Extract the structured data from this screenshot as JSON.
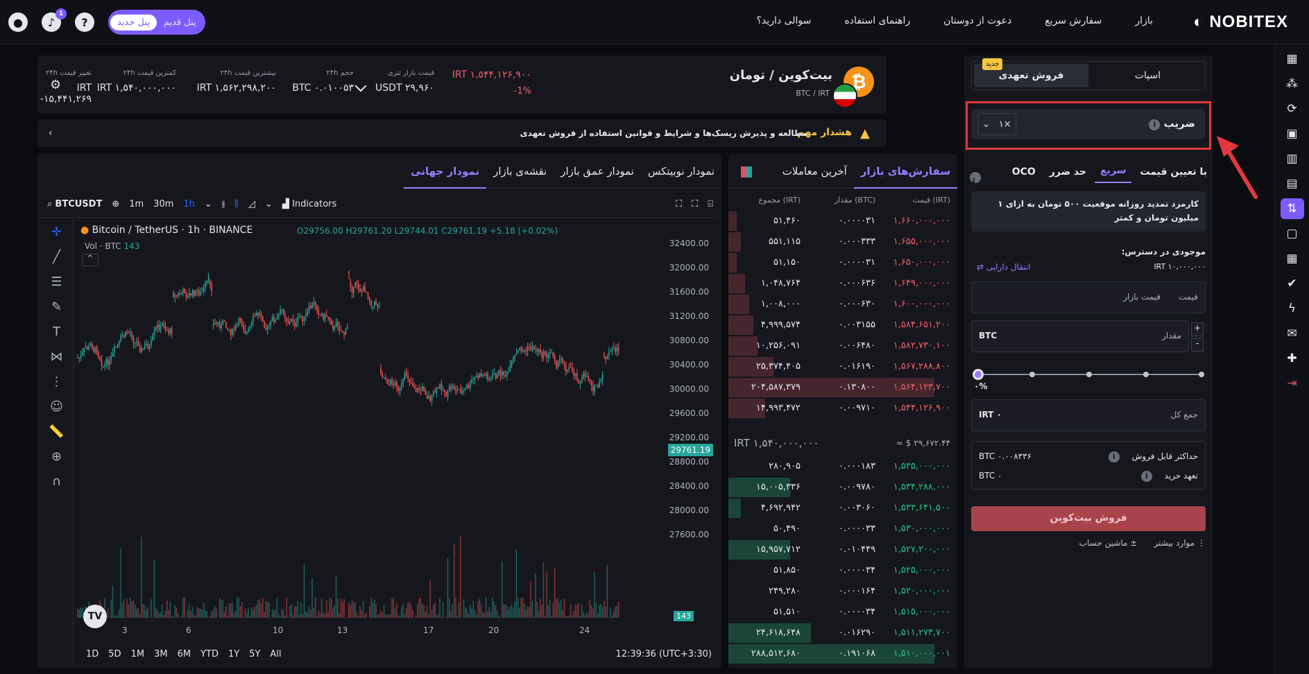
{
  "topbar": {
    "logo": "NOBITEX",
    "nav": [
      "بازار",
      "سفارش سریع",
      "دعوت از دوستان",
      "راهنمای استفاده",
      "سوالی دارید؟"
    ],
    "panel_new": "پنل جدید",
    "panel_old": "پنل قدیم",
    "notif_count": "1",
    "help": "?"
  },
  "market": {
    "title": "بیت‌کوین / تومان",
    "pair": "BTC / IRT",
    "coin_glyph": "₿",
    "stats": [
      {
        "label": "قیمت بازار تتری",
        "value": "USDT ۲۹,۹۶۰"
      },
      {
        "label": "حجم ۲۴h",
        "value": "BTC ۰.۰۱۰۰۵۳"
      },
      {
        "label": "بیشترین قیمت ۲۴h",
        "value": "IRT ۱,۵۶۲,۲۹۸,۲۰۰"
      },
      {
        "label": "کمترین قیمت ۲۴h",
        "value": "IRT ۱,۵۴۰,۰۰۰,۰۰۰"
      },
      {
        "label": "تغییر قیمت ۲۴h",
        "value": "IRT -۱۵,۴۴۱,۲۶۹"
      }
    ],
    "price": "IRT ۱,۵۴۴,۱۲۶,۹۰۰",
    "change": "-1%"
  },
  "warning": {
    "title": "هشدار مهم",
    "text": "مطالعه و پذیرش ریسک‌ها و شرایط و قوانین استفاده از فروش تعهدی"
  },
  "chart_tabs": [
    "نمودار نوبیتکس",
    "نمودار عمق بازار",
    "نقشه‌ی بازار",
    "نمودار جهانی"
  ],
  "tv": {
    "symbol": "BTCUSDT",
    "intervals": [
      "1m",
      "30m",
      "1h"
    ],
    "indicators": "Indicators",
    "legend": "Bitcoin / TetherUS · 1h · BINANCE",
    "ohlc": "O29756.00 H29761.20 L29744.01 C29761.19 +5.18 (+0.02%)",
    "vol_legend": "Vol · BTC",
    "vol_value": "143",
    "price_tag": "29761.19",
    "vol_tag": "143",
    "yticks": [
      "32400.00",
      "32000.00",
      "31600.00",
      "31200.00",
      "30800.00",
      "30400.00",
      "30000.00",
      "29600.00",
      "29200.00",
      "28800.00",
      "28400.00",
      "28000.00",
      "27600.00"
    ],
    "xticks": [
      "3",
      "6",
      "10",
      "13",
      "17",
      "20",
      "24"
    ],
    "ranges": [
      "1D",
      "5D",
      "1M",
      "3M",
      "6M",
      "YTD",
      "1Y",
      "5Y",
      "All"
    ],
    "time": "12:39:36 (UTC+3:30)",
    "logo": "TV"
  },
  "orderbook": {
    "tabs": [
      "سفارش‌های بازار",
      "آخرین معاملات"
    ],
    "headers": [
      "قیمت (IRT)",
      "مقدار (BTC)",
      "مجموع (IRT)"
    ],
    "asks": [
      [
        "۱,۶۶۰,۰۰۰,۰۰۰",
        "۰.۰۰۰۰۳۱",
        "۵۱,۴۶۰",
        4
      ],
      [
        "۱,۶۵۵,۰۰۰,۰۰۰",
        "۰.۰۰۰۳۳۳",
        "۵۵۱,۱۱۵",
        6
      ],
      [
        "۱,۶۵۰,۰۰۰,۰۰۰",
        "۰.۰۰۰۰۳۱",
        "۵۱,۱۵۰",
        4
      ],
      [
        "۱,۶۴۹,۰۰۰,۰۰۰",
        "۰.۰۰۰۶۳۶",
        "۱,۰۴۸,۷۶۴",
        8
      ],
      [
        "۱,۶۰۰,۰۰۰,۰۰۰",
        "۰.۰۰۰۶۳۰",
        "۱,۰۰۸,۰۰۰",
        10
      ],
      [
        "۱,۵۸۴,۶۵۱,۲۰۰",
        "۰.۰۰۳۱۵۵",
        "۴,۹۹۹,۵۷۴",
        12
      ],
      [
        "۱,۵۸۲,۷۳۰,۱۰۰",
        "۰.۰۰۶۴۸۰",
        "۱۰,۲۵۶,۰۹۱",
        14
      ],
      [
        "۱,۵۶۷,۲۸۸,۸۰۰",
        "۰.۰۱۶۱۹۰",
        "۲۵,۳۷۴,۴۰۵",
        22
      ],
      [
        "۱,۵۶۴,۱۲۳,۷۰۰",
        "۰.۱۳۰۸۰۰",
        "۲۰۴,۵۸۷,۳۷۹",
        100
      ],
      [
        "۱,۵۴۴,۱۲۶,۹۰۰",
        "۰.۰۰۹۷۱۰",
        "۱۴,۹۹۳,۴۷۲",
        18
      ]
    ],
    "mid_irt": "IRT ۱,۵۴۰,۰۰۰,۰۰۰",
    "mid_usd": "≈ $ ۲۹,۶۷۲.۴۴",
    "bids": [
      [
        "۱,۵۳۵,۰۰۰,۰۰۰",
        "۰.۰۰۰۱۸۳",
        "۲۸۰,۹۰۵",
        0
      ],
      [
        "۱,۵۳۴,۲۸۸,۰۰۰",
        "۰.۰۰۹۷۸۰",
        "۱۵,۰۰۵,۳۳۶",
        30
      ],
      [
        "۱,۵۳۳,۶۴۱,۵۰۰",
        "۰.۰۰۳۰۶۰",
        "۴,۶۹۲,۹۴۲",
        6
      ],
      [
        "۱,۵۳۰,۰۰۰,۰۰۰",
        "۰.۰۰۰۰۳۳",
        "۵۰,۴۹۰",
        0
      ],
      [
        "۱,۵۲۷,۲۰۰,۰۰۰",
        "۰.۰۱۰۴۴۹",
        "۱۵,۹۵۷,۷۱۲",
        30
      ],
      [
        "۱,۵۲۵,۰۰۰,۰۰۰",
        "۰.۰۰۰۰۳۴",
        "۵۱,۸۵۰",
        0
      ],
      [
        "۱,۵۲۰,۰۰۰,۰۰۰",
        "۰.۰۰۰۱۶۴",
        "۲۴۹,۲۸۰",
        0
      ],
      [
        "۱,۵۱۵,۰۰۰,۰۰۰",
        "۰.۰۰۰۰۳۴",
        "۵۱,۵۱۰",
        0
      ],
      [
        "۱,۵۱۱,۲۷۳,۷۰۰",
        "۰.۰۱۶۲۹۰",
        "۲۴,۶۱۸,۶۴۸",
        40
      ],
      [
        "۱,۵۱۰,۰۰۰,۰۰۱",
        "۰.۱۹۱۰۶۸",
        "۲۸۸,۵۱۲,۶۸۰",
        100
      ]
    ]
  },
  "trade": {
    "tab_spot": "اسپات",
    "tab_margin": "فروش تعهدی",
    "new_badge": "جدید",
    "leverage_label": "ضریب",
    "leverage_value": "۱×",
    "order_tabs": [
      "با تعیین قیمت",
      "سریع",
      "حد ضرر",
      "OCO"
    ],
    "fee_text": "کارمزد تمدید روزانه موقعیت ۵۰۰ تومان به ازای ۱ میلیون تومان و کمتر",
    "available_label": "موجودی در دسترس:",
    "available_value": "IRT ۱۰,۰۰۰,۰۰۰",
    "transfer": "انتقال دارایی",
    "price_label": "قیمت",
    "price_placeholder": "قیمت بازار",
    "amount_label": "مقدار",
    "amount_unit": "BTC",
    "percent": "۰%",
    "total_label": "جمع کل",
    "total_value": "IRT ۰",
    "max_sell_label": "حداکثر قابل فروش",
    "max_sell_value": "BTC ۰.۰۰۸۳۳۶",
    "commit_label": "تعهد خرید",
    "commit_value": "BTC ۰",
    "sell_button": "فروش بیت‌کوین",
    "more": "موارد بیشتر",
    "calculator": "ماشین حساب"
  },
  "colors": {
    "accent": "#7c5cff",
    "ask": "#f0616d",
    "bid": "#26c281",
    "warning": "#f5c542",
    "highlight": "#e0383e"
  }
}
